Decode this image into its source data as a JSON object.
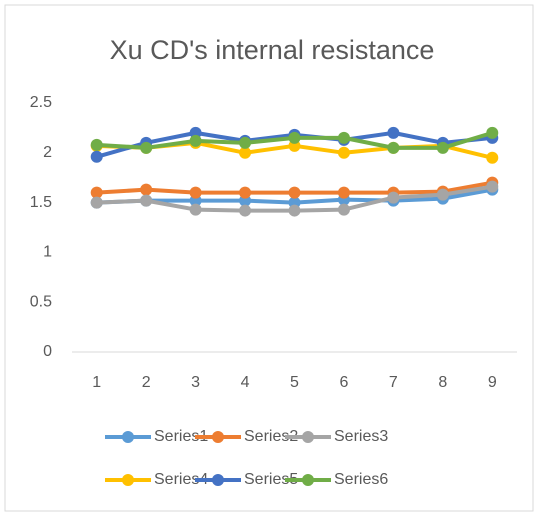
{
  "chart_data": {
    "type": "line",
    "title": "Xu CD's internal resistance",
    "categories": [
      "1",
      "2",
      "3",
      "4",
      "5",
      "6",
      "7",
      "8",
      "9"
    ],
    "series": [
      {
        "name": "Series1",
        "color": "#5b9bd5",
        "values": [
          1.5,
          1.52,
          1.52,
          1.52,
          1.5,
          1.53,
          1.52,
          1.54,
          1.63
        ]
      },
      {
        "name": "Series2",
        "color": "#ed7d31",
        "values": [
          1.6,
          1.63,
          1.6,
          1.6,
          1.6,
          1.6,
          1.6,
          1.61,
          1.7
        ]
      },
      {
        "name": "Series3",
        "color": "#a5a5a5",
        "values": [
          1.5,
          1.52,
          1.43,
          1.42,
          1.42,
          1.43,
          1.55,
          1.58,
          1.66
        ]
      },
      {
        "name": "Series4",
        "color": "#ffc000",
        "values": [
          2.07,
          2.05,
          2.1,
          2.0,
          2.07,
          2.0,
          2.05,
          2.07,
          1.95
        ]
      },
      {
        "name": "Series5",
        "color": "#4472c4",
        "values": [
          1.96,
          2.1,
          2.2,
          2.12,
          2.18,
          2.13,
          2.2,
          2.1,
          2.15
        ]
      },
      {
        "name": "Series6",
        "color": "#70ad47",
        "values": [
          2.08,
          2.05,
          2.12,
          2.1,
          2.15,
          2.15,
          2.05,
          2.05,
          2.2
        ]
      }
    ],
    "ylim": [
      0,
      2.5
    ],
    "yticks": [
      0,
      0.5,
      1,
      1.5,
      2,
      2.5
    ],
    "grid": false,
    "legend": "bottom"
  }
}
